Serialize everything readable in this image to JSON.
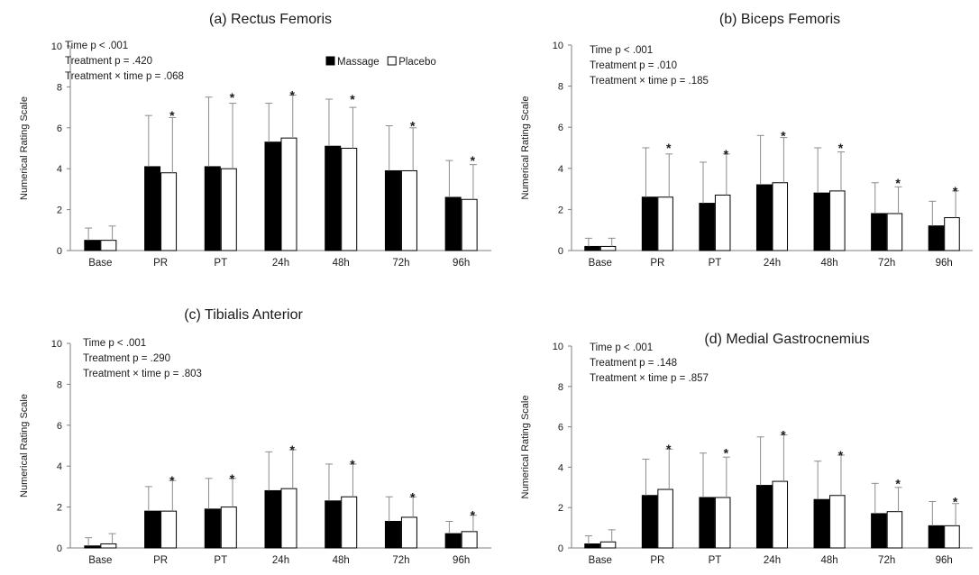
{
  "colors": {
    "massage": "#000000",
    "placebo": "#ffffff",
    "axis": "#7f7f7f",
    "error": "#8c8c8c"
  },
  "chart_data": [
    {
      "type": "bar",
      "title": "(a) Rectus Femoris",
      "ylabel": "Numerical Rating Scale",
      "ylim": [
        0,
        10
      ],
      "yticks": [
        0,
        2,
        4,
        6,
        8,
        10
      ],
      "categories": [
        "Base",
        "PR",
        "PT",
        "24h",
        "48h",
        "72h",
        "96h"
      ],
      "series": [
        {
          "name": "Massage",
          "values": [
            0.5,
            4.1,
            4.1,
            5.3,
            5.1,
            3.9,
            2.6
          ],
          "errors": [
            0.6,
            2.5,
            3.4,
            1.9,
            2.3,
            2.2,
            1.8
          ]
        },
        {
          "name": "Placebo",
          "values": [
            0.5,
            3.8,
            4.0,
            5.5,
            5.0,
            3.9,
            2.5
          ],
          "errors": [
            0.7,
            2.7,
            3.2,
            2.1,
            2.0,
            2.1,
            1.7
          ]
        }
      ],
      "significance": [
        "",
        "*",
        "*",
        "*",
        "*",
        "*",
        "*"
      ],
      "stats": [
        "Time p < .001",
        "Treatment p = .420",
        "Treatment × time p = .068"
      ],
      "legend": {
        "show": true,
        "position": "top-right"
      }
    },
    {
      "type": "bar",
      "title": "(b) Biceps Femoris",
      "ylabel": "Numerical Rating Scale",
      "ylim": [
        0,
        10
      ],
      "yticks": [
        0,
        2,
        4,
        6,
        8,
        10
      ],
      "categories": [
        "Base",
        "PR",
        "PT",
        "24h",
        "48h",
        "72h",
        "96h"
      ],
      "series": [
        {
          "name": "Massage",
          "values": [
            0.2,
            2.6,
            2.3,
            3.2,
            2.8,
            1.8,
            1.2
          ],
          "errors": [
            0.4,
            2.4,
            2.0,
            2.4,
            2.2,
            1.5,
            1.2
          ]
        },
        {
          "name": "Placebo",
          "values": [
            0.2,
            2.6,
            2.7,
            3.3,
            2.9,
            1.8,
            1.6
          ],
          "errors": [
            0.4,
            2.1,
            2.0,
            2.2,
            1.9,
            1.3,
            1.3
          ]
        }
      ],
      "significance": [
        "",
        "*",
        "*",
        "*",
        "*",
        "*",
        "*"
      ],
      "stats": [
        "Time p < .001",
        "Treatment p = .010",
        "Treatment × time p = .185"
      ],
      "legend": {
        "show": false,
        "position": ""
      }
    },
    {
      "type": "bar",
      "title": "(c) Tibialis Anterior",
      "ylabel": "Numerical Rating Scale",
      "ylim": [
        0,
        10
      ],
      "yticks": [
        0,
        2,
        4,
        6,
        8,
        10
      ],
      "categories": [
        "Base",
        "PR",
        "PT",
        "24h",
        "48h",
        "72h",
        "96h"
      ],
      "series": [
        {
          "name": "Massage",
          "values": [
            0.1,
            1.8,
            1.9,
            2.8,
            2.3,
            1.3,
            0.7
          ],
          "errors": [
            0.4,
            1.2,
            1.5,
            1.9,
            1.8,
            1.2,
            0.6
          ]
        },
        {
          "name": "Placebo",
          "values": [
            0.2,
            1.8,
            2.0,
            2.9,
            2.5,
            1.5,
            0.8
          ],
          "errors": [
            0.5,
            1.5,
            1.4,
            1.9,
            1.6,
            1.0,
            0.8
          ]
        }
      ],
      "significance": [
        "",
        "*",
        "*",
        "*",
        "*",
        "*",
        "*"
      ],
      "stats": [
        "Time p < .001",
        "Treatment p = .290",
        "Treatment × time p = .803"
      ],
      "legend": {
        "show": false,
        "position": ""
      }
    },
    {
      "type": "bar",
      "title": "(d) Medial Gastrocnemius",
      "ylabel": "Numerical Rating Scale",
      "ylim": [
        0,
        10
      ],
      "yticks": [
        0,
        2,
        4,
        6,
        8,
        10
      ],
      "categories": [
        "Base",
        "PR",
        "PT",
        "24h",
        "48h",
        "72h",
        "96h"
      ],
      "series": [
        {
          "name": "Massage",
          "values": [
            0.2,
            2.6,
            2.5,
            3.1,
            2.4,
            1.7,
            1.1
          ],
          "errors": [
            0.4,
            1.8,
            2.2,
            2.4,
            1.9,
            1.5,
            1.2
          ]
        },
        {
          "name": "Placebo",
          "values": [
            0.3,
            2.9,
            2.5,
            3.3,
            2.6,
            1.8,
            1.1
          ],
          "errors": [
            0.6,
            2.0,
            2.0,
            2.3,
            2.0,
            1.2,
            1.1
          ]
        }
      ],
      "significance": [
        "",
        "*",
        "*",
        "*",
        "*",
        "*",
        "*"
      ],
      "stats": [
        "Time p < .001",
        "Treatment p = .148",
        "Treatment × time p = .857"
      ],
      "legend": {
        "show": false,
        "position": ""
      }
    }
  ]
}
